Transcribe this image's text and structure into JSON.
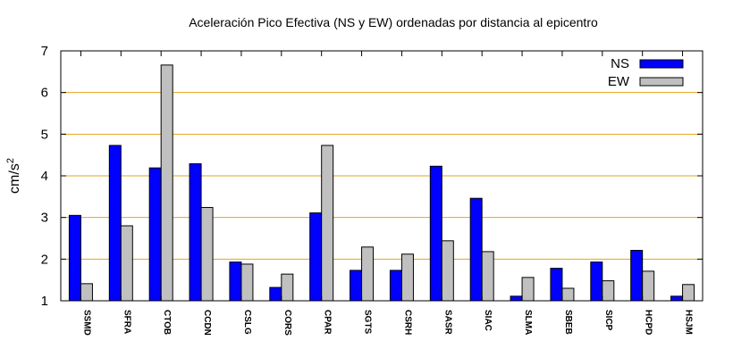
{
  "chart_data": {
    "type": "bar",
    "title": "Aceleración Pico Efectiva (NS y EW) ordenadas por distancia al epicentro",
    "xlabel": "",
    "ylabel": "cm/s",
    "ylabel_superscript": "2",
    "ylim": [
      1,
      7
    ],
    "yticks": [
      1,
      2,
      3,
      4,
      5,
      6,
      7
    ],
    "grid": true,
    "grid_color": "#e8a317",
    "legend_position": "top-right",
    "categories": [
      "SSMD",
      "SFRA",
      "CTOB",
      "CCDN",
      "CSLG",
      "CORS",
      "CPAR",
      "SGTS",
      "CSRH",
      "SASR",
      "SIAC",
      "SLMA",
      "SBEB",
      "SICP",
      "HCPD",
      "HSJM"
    ],
    "series": [
      {
        "name": "NS",
        "color": "#0000ff",
        "values": [
          3.05,
          4.73,
          4.19,
          4.29,
          1.93,
          1.32,
          3.11,
          1.73,
          1.73,
          4.23,
          3.46,
          1.11,
          1.78,
          1.93,
          2.21,
          1.11
        ]
      },
      {
        "name": "EW",
        "color": "#c0c0c0",
        "values": [
          1.41,
          2.8,
          6.66,
          3.24,
          1.88,
          1.64,
          4.73,
          2.29,
          2.12,
          2.44,
          2.18,
          1.56,
          1.3,
          1.48,
          1.71,
          1.39
        ]
      }
    ]
  }
}
